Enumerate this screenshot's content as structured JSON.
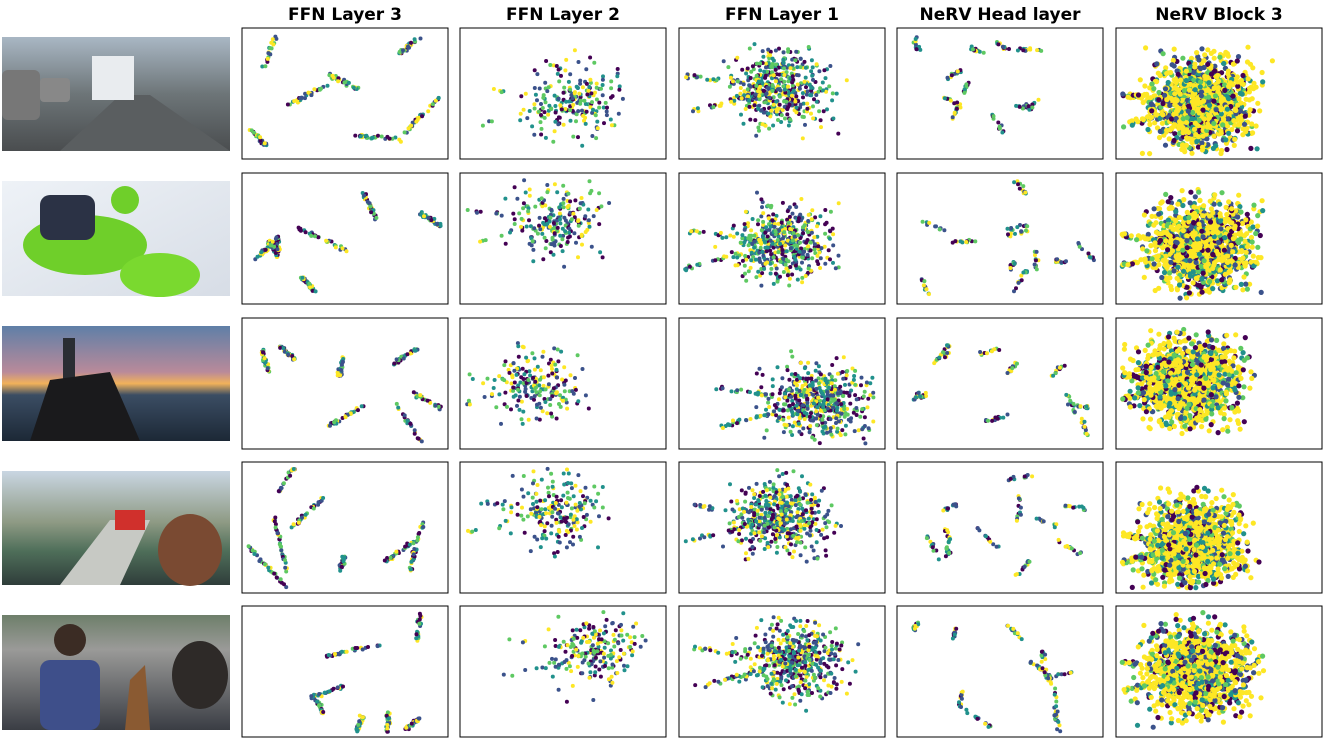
{
  "figure": {
    "column_titles": [
      "FFN Layer 3",
      "FFN Layer 2",
      "FFN Layer 1",
      "NeRV Head layer",
      "NeRV Block 3"
    ]
  }
}
